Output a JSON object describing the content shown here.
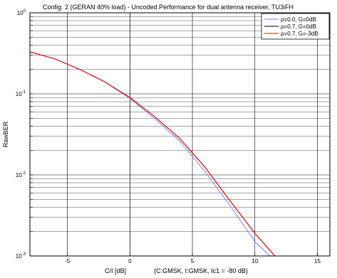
{
  "chart_data": {
    "type": "line",
    "title": "Config. 2 (GERAN 40% load) - Uncoded Performance for dual antenna receiver, TU3iFH",
    "xlabel": "C/I [dB]",
    "xlabel_note": "(C:GMSK, I:GMSK, Ic1 = -80 dB)",
    "ylabel": "RawBER",
    "xlim": [
      -8,
      16
    ],
    "ylim": [
      0.001,
      1
    ],
    "yscale": "log",
    "grid": true,
    "legend_position": "top-right",
    "x_ticks": [
      -5,
      0,
      5,
      10,
      15
    ],
    "x_tick_labels": [
      "-5",
      "0",
      "5",
      "10",
      "15"
    ],
    "y_ticks": [
      {
        "value": 1,
        "base": "10",
        "exp": "0"
      },
      {
        "value": 0.1,
        "base": "10",
        "exp": "-1"
      },
      {
        "value": 0.01,
        "base": "10",
        "exp": "-2"
      },
      {
        "value": 0.001,
        "base": "10",
        "exp": "-3"
      }
    ],
    "series": [
      {
        "name": "ρ=0.0, G=0dB",
        "color": "#8080ff",
        "x": [
          -8,
          -6,
          -4,
          -2,
          0,
          2,
          4,
          6,
          8,
          10,
          11.2
        ],
        "y": [
          0.33,
          0.27,
          0.2,
          0.14,
          0.088,
          0.049,
          0.026,
          0.011,
          0.0042,
          0.0015,
          0.001
        ]
      },
      {
        "name": "ρ=0.7, G=0dB",
        "color": "#000000",
        "x": [
          -8,
          -6,
          -4,
          -2,
          0,
          2,
          4,
          6,
          8,
          10,
          11.6
        ],
        "y": [
          0.33,
          0.27,
          0.2,
          0.14,
          0.09,
          0.052,
          0.028,
          0.0125,
          0.0048,
          0.0019,
          0.001
        ]
      },
      {
        "name": "ρ=0.7, G=-3dB",
        "color": "#ff0000",
        "x": [
          -8,
          -6,
          -4,
          -2,
          0,
          2,
          4,
          6,
          8,
          10,
          11.6
        ],
        "y": [
          0.33,
          0.27,
          0.2,
          0.14,
          0.09,
          0.052,
          0.028,
          0.0125,
          0.0048,
          0.0019,
          0.001
        ]
      }
    ]
  }
}
